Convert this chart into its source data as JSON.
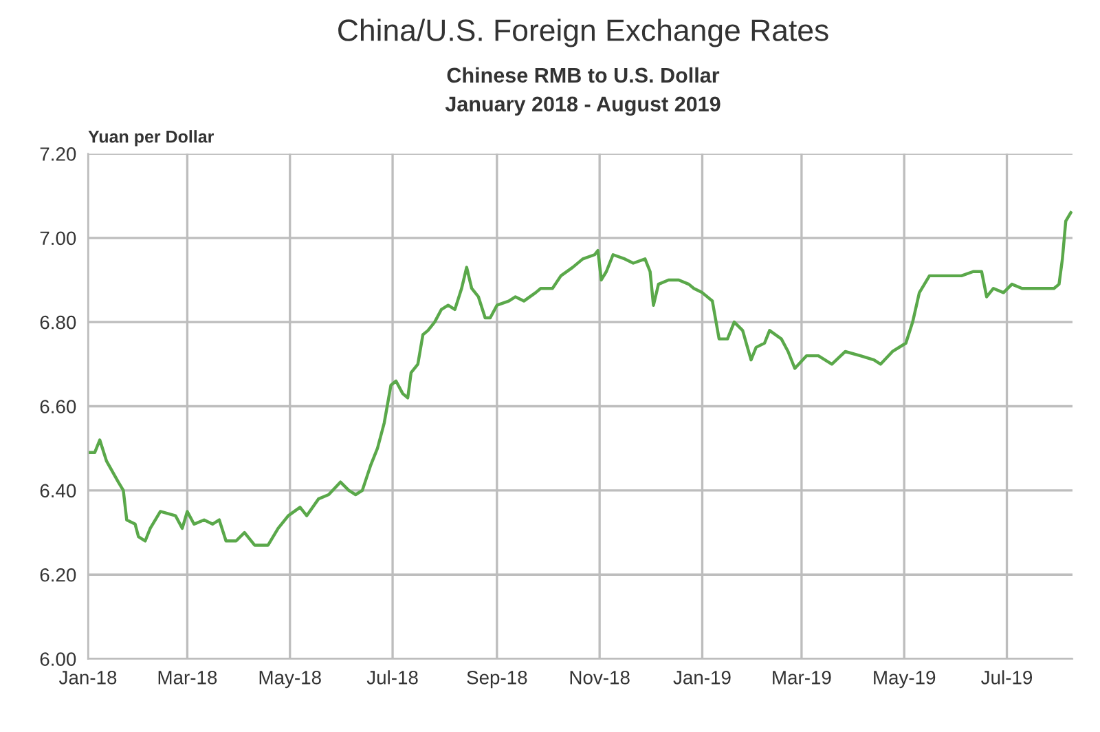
{
  "chart_data": {
    "type": "line",
    "title": "China/U.S. Foreign Exchange Rates",
    "subtitle": "Chinese RMB to U.S. Dollar\nJanuary 2018 - August 2019",
    "ylabel": "Yuan per Dollar",
    "x": [
      "2018-01-01",
      "2018-01-05",
      "2018-01-08",
      "2018-01-12",
      "2018-01-19",
      "2018-01-22",
      "2018-01-24",
      "2018-01-29",
      "2018-01-31",
      "2018-02-04",
      "2018-02-07",
      "2018-02-13",
      "2018-02-22",
      "2018-02-26",
      "2018-03-01",
      "2018-03-05",
      "2018-03-11",
      "2018-03-16",
      "2018-03-20",
      "2018-03-24",
      "2018-03-30",
      "2018-04-04",
      "2018-04-10",
      "2018-04-18",
      "2018-04-24",
      "2018-04-30",
      "2018-05-07",
      "2018-05-11",
      "2018-05-18",
      "2018-05-24",
      "2018-05-31",
      "2018-06-05",
      "2018-06-09",
      "2018-06-13",
      "2018-06-18",
      "2018-06-22",
      "2018-06-26",
      "2018-06-30",
      "2018-07-03",
      "2018-07-07",
      "2018-07-10",
      "2018-07-12",
      "2018-07-16",
      "2018-07-19",
      "2018-07-22",
      "2018-07-26",
      "2018-07-30",
      "2018-08-03",
      "2018-08-07",
      "2018-08-11",
      "2018-08-14",
      "2018-08-17",
      "2018-08-21",
      "2018-08-25",
      "2018-08-28",
      "2018-09-01",
      "2018-09-08",
      "2018-09-12",
      "2018-09-17",
      "2018-09-24",
      "2018-09-27",
      "2018-10-04",
      "2018-10-09",
      "2018-10-16",
      "2018-10-22",
      "2018-10-29",
      "2018-10-31",
      "2018-11-02",
      "2018-11-05",
      "2018-11-09",
      "2018-11-16",
      "2018-11-21",
      "2018-11-28",
      "2018-12-01",
      "2018-12-03",
      "2018-12-06",
      "2018-12-12",
      "2018-12-18",
      "2018-12-24",
      "2018-12-27",
      "2019-01-01",
      "2019-01-07",
      "2019-01-11",
      "2019-01-16",
      "2019-01-20",
      "2019-01-25",
      "2019-01-30",
      "2019-02-02",
      "2019-02-07",
      "2019-02-10",
      "2019-02-17",
      "2019-02-21",
      "2019-02-25",
      "2019-03-04",
      "2019-03-11",
      "2019-03-19",
      "2019-03-27",
      "2019-04-05",
      "2019-04-13",
      "2019-04-17",
      "2019-04-24",
      "2019-05-02",
      "2019-05-06",
      "2019-05-10",
      "2019-05-16",
      "2019-05-21",
      "2019-05-29",
      "2019-06-04",
      "2019-06-11",
      "2019-06-16",
      "2019-06-19",
      "2019-06-23",
      "2019-06-29",
      "2019-07-04",
      "2019-07-10",
      "2019-07-18",
      "2019-07-29",
      "2019-08-01",
      "2019-08-03",
      "2019-08-05",
      "2019-08-08"
    ],
    "series": [
      {
        "color": "#5aa84a",
        "values": [
          6.49,
          6.49,
          6.52,
          6.47,
          6.42,
          6.4,
          6.33,
          6.32,
          6.29,
          6.28,
          6.31,
          6.35,
          6.34,
          6.31,
          6.35,
          6.32,
          6.33,
          6.32,
          6.33,
          6.28,
          6.28,
          6.3,
          6.27,
          6.27,
          6.31,
          6.34,
          6.36,
          6.34,
          6.38,
          6.39,
          6.42,
          6.4,
          6.39,
          6.4,
          6.46,
          6.5,
          6.56,
          6.65,
          6.66,
          6.63,
          6.62,
          6.68,
          6.7,
          6.77,
          6.78,
          6.8,
          6.83,
          6.84,
          6.83,
          6.88,
          6.93,
          6.88,
          6.86,
          6.81,
          6.81,
          6.84,
          6.85,
          6.86,
          6.85,
          6.87,
          6.88,
          6.88,
          6.91,
          6.93,
          6.95,
          6.96,
          6.97,
          6.9,
          6.92,
          6.96,
          6.95,
          6.94,
          6.95,
          6.92,
          6.84,
          6.89,
          6.9,
          6.9,
          6.89,
          6.88,
          6.87,
          6.85,
          6.76,
          6.76,
          6.8,
          6.78,
          6.71,
          6.74,
          6.75,
          6.78,
          6.76,
          6.73,
          6.69,
          6.72,
          6.72,
          6.7,
          6.73,
          6.72,
          6.71,
          6.7,
          6.73,
          6.75,
          6.8,
          6.87,
          6.91,
          6.91,
          6.91,
          6.91,
          6.92,
          6.92,
          6.86,
          6.88,
          6.87,
          6.89,
          6.88,
          6.88,
          6.88,
          6.89,
          6.95,
          7.04,
          7.06
        ]
      }
    ],
    "xlim": [
      "2018-01-01",
      "2019-08-09"
    ],
    "xticks": [
      {
        "value": "2018-01-01",
        "label": "Jan-18"
      },
      {
        "value": "2018-03-01",
        "label": "Mar-18"
      },
      {
        "value": "2018-05-01",
        "label": "May-18"
      },
      {
        "value": "2018-07-01",
        "label": "Jul-18"
      },
      {
        "value": "2018-09-01",
        "label": "Sep-18"
      },
      {
        "value": "2018-11-01",
        "label": "Nov-18"
      },
      {
        "value": "2019-01-01",
        "label": "Jan-19"
      },
      {
        "value": "2019-03-01",
        "label": "Mar-19"
      },
      {
        "value": "2019-05-01",
        "label": "May-19"
      },
      {
        "value": "2019-07-01",
        "label": "Jul-19"
      }
    ],
    "ylim": [
      6.0,
      7.2
    ],
    "yticks": [
      {
        "value": 6.0,
        "label": "6.00"
      },
      {
        "value": 6.2,
        "label": "6.20"
      },
      {
        "value": 6.4,
        "label": "6.40"
      },
      {
        "value": 6.6,
        "label": "6.60"
      },
      {
        "value": 6.8,
        "label": "6.80"
      },
      {
        "value": 7.0,
        "label": "7.00"
      },
      {
        "value": 7.2,
        "label": "7.20"
      }
    ],
    "grid": true,
    "marker": "none",
    "line_style": "solid"
  }
}
